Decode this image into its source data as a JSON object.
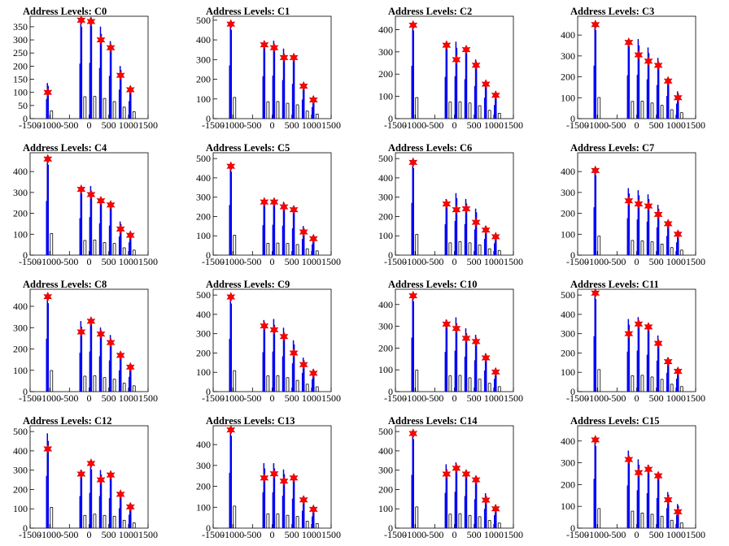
{
  "chart_data": {
    "type": "histogram-grid",
    "x_ticks": [
      -1500,
      -1000,
      -500,
      0,
      500,
      1000,
      1500
    ],
    "xlim": [
      -1500,
      1500
    ],
    "marker": "red-star",
    "bar_color": "#0000ff",
    "panels": [
      {
        "title": "Address Levels: C0",
        "ylim": [
          0,
          390
        ],
        "y_ticks": [
          0,
          50,
          100,
          150,
          200,
          250,
          300,
          350
        ],
        "peak_x": [
          -1050,
          -200,
          50,
          300,
          550,
          800,
          1050
        ],
        "bar_tops": [
          135,
          380,
          385,
          350,
          295,
          200,
          120
        ],
        "stars": [
          100,
          375,
          370,
          300,
          270,
          165,
          110
        ]
      },
      {
        "title": "Address Levels: C1",
        "ylim": [
          0,
          520
        ],
        "y_ticks": [
          0,
          100,
          200,
          300,
          400,
          500
        ],
        "peak_x": [
          -1050,
          -200,
          50,
          300,
          550,
          800,
          1050
        ],
        "bar_tops": [
          490,
          390,
          395,
          355,
          320,
          175,
          105
        ],
        "stars": [
          480,
          375,
          360,
          310,
          310,
          165,
          95
        ]
      },
      {
        "title": "Address Levels: C2",
        "ylim": [
          0,
          460
        ],
        "y_ticks": [
          0,
          100,
          200,
          300,
          400
        ],
        "peak_x": [
          -1050,
          -200,
          50,
          300,
          550,
          800,
          1050
        ],
        "bar_tops": [
          430,
          340,
          345,
          320,
          265,
          170,
          110
        ],
        "stars": [
          420,
          330,
          265,
          310,
          240,
          155,
          105
        ]
      },
      {
        "title": "Address Levels: C3",
        "ylim": [
          0,
          490
        ],
        "y_ticks": [
          0,
          100,
          200,
          300,
          400
        ],
        "peak_x": [
          -1050,
          -200,
          50,
          300,
          550,
          800,
          1050
        ],
        "bar_tops": [
          460,
          375,
          380,
          340,
          290,
          195,
          130
        ],
        "stars": [
          450,
          365,
          305,
          275,
          255,
          180,
          100
        ]
      },
      {
        "title": "Address Levels: C4",
        "ylim": [
          0,
          490
        ],
        "y_ticks": [
          0,
          100,
          200,
          300,
          400
        ],
        "peak_x": [
          -1050,
          -200,
          50,
          300,
          550,
          800,
          1050
        ],
        "bar_tops": [
          470,
          320,
          330,
          275,
          255,
          160,
          110
        ],
        "stars": [
          460,
          315,
          290,
          260,
          240,
          125,
          95
        ]
      },
      {
        "title": "Address Levels: C5",
        "ylim": [
          0,
          530
        ],
        "y_ticks": [
          0,
          100,
          200,
          300,
          400,
          500
        ],
        "peak_x": [
          -1050,
          -200,
          50,
          300,
          550,
          800,
          1050
        ],
        "bar_tops": [
          470,
          280,
          285,
          275,
          250,
          150,
          100
        ],
        "stars": [
          460,
          275,
          275,
          250,
          235,
          120,
          85
        ]
      },
      {
        "title": "Address Levels: C6",
        "ylim": [
          0,
          530
        ],
        "y_ticks": [
          0,
          100,
          200,
          300,
          400,
          500
        ],
        "peak_x": [
          -1050,
          -200,
          50,
          300,
          550,
          800,
          1050
        ],
        "bar_tops": [
          490,
          290,
          320,
          290,
          240,
          150,
          110
        ],
        "stars": [
          480,
          265,
          235,
          240,
          170,
          130,
          95
        ]
      },
      {
        "title": "Address Levels: C7",
        "ylim": [
          0,
          490
        ],
        "y_ticks": [
          0,
          100,
          200,
          300,
          400
        ],
        "peak_x": [
          -1050,
          -200,
          50,
          300,
          550,
          800,
          1050
        ],
        "bar_tops": [
          415,
          320,
          310,
          290,
          240,
          165,
          110
        ],
        "stars": [
          405,
          260,
          245,
          235,
          195,
          150,
          100
        ]
      },
      {
        "title": "Address Levels: C8",
        "ylim": [
          0,
          480
        ],
        "y_ticks": [
          0,
          100,
          200,
          300,
          400
        ],
        "peak_x": [
          -1050,
          -200,
          50,
          300,
          550,
          800,
          1050
        ],
        "bar_tops": [
          450,
          330,
          340,
          300,
          265,
          180,
          125
        ],
        "stars": [
          445,
          280,
          330,
          270,
          230,
          170,
          115
        ]
      },
      {
        "title": "Address Levels: C9",
        "ylim": [
          0,
          530
        ],
        "y_ticks": [
          0,
          100,
          200,
          300,
          400,
          500
        ],
        "peak_x": [
          -1050,
          -200,
          50,
          300,
          550,
          800,
          1050
        ],
        "bar_tops": [
          495,
          370,
          375,
          330,
          265,
          175,
          115
        ],
        "stars": [
          490,
          340,
          320,
          285,
          200,
          140,
          95
        ]
      },
      {
        "title": "Address Levels: C10",
        "ylim": [
          0,
          470
        ],
        "y_ticks": [
          0,
          100,
          200,
          300,
          400
        ],
        "peak_x": [
          -1050,
          -200,
          50,
          300,
          550,
          800,
          1050
        ],
        "bar_tops": [
          450,
          330,
          340,
          290,
          260,
          175,
          105
        ],
        "stars": [
          440,
          310,
          290,
          245,
          230,
          155,
          90
        ]
      },
      {
        "title": "Address Levels: C11",
        "ylim": [
          0,
          530
        ],
        "y_ticks": [
          0,
          100,
          200,
          300,
          400,
          500
        ],
        "peak_x": [
          -1050,
          -200,
          50,
          300,
          550,
          800,
          1050
        ],
        "bar_tops": [
          520,
          375,
          385,
          345,
          290,
          175,
          120
        ],
        "stars": [
          510,
          300,
          350,
          335,
          250,
          155,
          105
        ]
      },
      {
        "title": "Address Levels: C12",
        "ylim": [
          0,
          530
        ],
        "y_ticks": [
          0,
          100,
          200,
          300,
          400,
          500
        ],
        "peak_x": [
          -1050,
          -200,
          50,
          300,
          550,
          800,
          1050
        ],
        "bar_tops": [
          490,
          300,
          330,
          300,
          280,
          185,
          125
        ],
        "stars": [
          410,
          280,
          335,
          250,
          275,
          175,
          110
        ]
      },
      {
        "title": "Address Levels: C13",
        "ylim": [
          0,
          490
        ],
        "y_ticks": [
          0,
          100,
          200,
          300,
          400
        ],
        "peak_x": [
          -1050,
          -200,
          50,
          300,
          550,
          800,
          1050
        ],
        "bar_tops": [
          480,
          310,
          310,
          280,
          255,
          150,
          100
        ],
        "stars": [
          470,
          240,
          260,
          225,
          240,
          135,
          90
        ]
      },
      {
        "title": "Address Levels: C14",
        "ylim": [
          0,
          530
        ],
        "y_ticks": [
          0,
          100,
          200,
          300,
          400,
          500
        ],
        "peak_x": [
          -1050,
          -200,
          50,
          300,
          550,
          800,
          1050
        ],
        "bar_tops": [
          500,
          330,
          340,
          300,
          270,
          180,
          120
        ],
        "stars": [
          490,
          280,
          310,
          280,
          250,
          145,
          100
        ]
      },
      {
        "title": "Address Levels: C15",
        "ylim": [
          0,
          470
        ],
        "y_ticks": [
          0,
          100,
          200,
          300,
          400
        ],
        "peak_x": [
          -1050,
          -200,
          50,
          300,
          550,
          800,
          1050
        ],
        "bar_tops": [
          410,
          355,
          315,
          290,
          250,
          165,
          110
        ],
        "stars": [
          405,
          315,
          255,
          270,
          240,
          130,
          75
        ]
      }
    ]
  }
}
